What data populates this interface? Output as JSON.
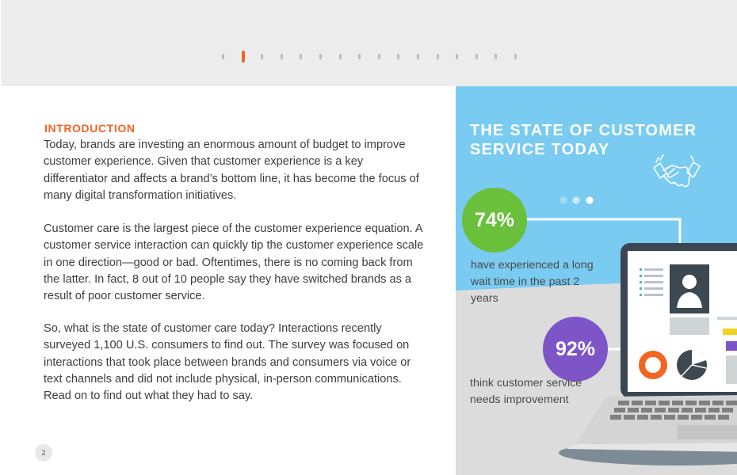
{
  "pager": {
    "count": 16,
    "active_index": 1
  },
  "intro": {
    "heading": "INTRODUCTION",
    "paragraphs": [
      "Today, brands are investing an enormous amount of budget to improve customer experience. Given that customer experience is a key differentiator and affects a brand’s bottom line, it has become the focus of many digital transformation initiatives.",
      "Customer care is the largest piece of the customer experience equation. A customer service interaction can quickly tip the customer experience scale in one direction—good or bad. Oftentimes, there is no coming back from the latter. In fact, 8 out of 10 people say they have switched brands as a result of poor customer service.",
      "So, what is the state of customer care today? Interactions recently surveyed 1,100 U.S. consumers to find out. The survey was focused on interactions that took place between brands and consumers via voice or text channels and did not include physical, in-person communications. Read on to find out what they had to say."
    ],
    "page_number": "2"
  },
  "panel": {
    "title": "THE STATE OF CUSTOMER SERVICE TODAY",
    "stats": [
      {
        "value": "74%",
        "caption": "have experienced a long wait time in the past 2 years",
        "color": "#6abf3b"
      },
      {
        "value": "92%",
        "caption": "think customer service needs improvement",
        "color": "#7e55c6"
      }
    ],
    "icons": [
      "handshake-icon",
      "ellipsis-icon",
      "laptop-illustration",
      "profile-card-icon",
      "donut-chart-icon",
      "pie-chart-icon"
    ],
    "colors": {
      "sky": "#79cbf1",
      "ground": "#dcdcdc",
      "accent": "#f26522"
    }
  }
}
